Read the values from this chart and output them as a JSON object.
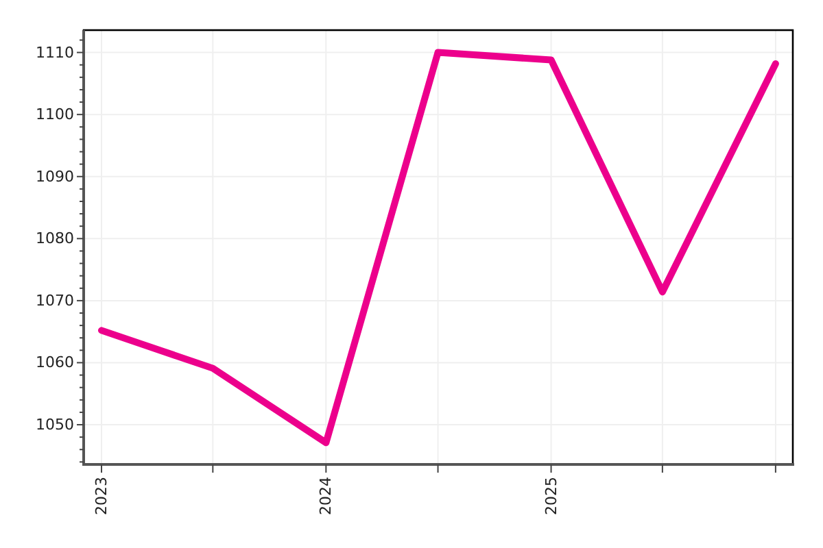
{
  "chart_data": {
    "type": "line",
    "x": [
      "2023",
      "2023-07",
      "2024",
      "2024-07",
      "2025",
      "2025-07",
      "2026"
    ],
    "series": [
      {
        "color": "#ec008c",
        "values": [
          1065.2,
          1059.1,
          1047.1,
          1110.0,
          1108.8,
          1071.4,
          1108.2
        ]
      }
    ],
    "xlim": [
      "2022-12-03",
      "2026-01-29"
    ],
    "xticks": [
      {
        "value": "2023",
        "label": "2023"
      },
      {
        "value": "2023-07",
        "label": null
      },
      {
        "value": "2024",
        "label": "2024"
      },
      {
        "value": "2024-07",
        "label": null
      },
      {
        "value": "2025",
        "label": "2025"
      },
      {
        "value": "2025-07",
        "label": null
      },
      {
        "value": "2026",
        "label": null
      }
    ],
    "ylim": [
      1043.6,
      1113.6
    ],
    "yticks": [
      {
        "value": 1044,
        "label": null
      },
      {
        "value": 1046,
        "label": null
      },
      {
        "value": 1048,
        "label": null
      },
      1050,
      {
        "value": 1052,
        "label": null
      },
      {
        "value": 1054,
        "label": null
      },
      {
        "value": 1056,
        "label": null
      },
      {
        "value": 1058,
        "label": null
      },
      1060,
      {
        "value": 1062,
        "label": null
      },
      {
        "value": 1064,
        "label": null
      },
      {
        "value": 1066,
        "label": null
      },
      {
        "value": 1068,
        "label": null
      },
      1070,
      {
        "value": 1072,
        "label": null
      },
      {
        "value": 1074,
        "label": null
      },
      {
        "value": 1076,
        "label": null
      },
      {
        "value": 1078,
        "label": null
      },
      1080,
      {
        "value": 1082,
        "label": null
      },
      {
        "value": 1084,
        "label": null
      },
      {
        "value": 1086,
        "label": null
      },
      {
        "value": 1088,
        "label": null
      },
      1090,
      {
        "value": 1092,
        "label": null
      },
      {
        "value": 1094,
        "label": null
      },
      {
        "value": 1096,
        "label": null
      },
      {
        "value": 1098,
        "label": null
      },
      1100,
      {
        "value": 1102,
        "label": null
      },
      {
        "value": 1104,
        "label": null
      },
      {
        "value": 1106,
        "label": null
      },
      {
        "value": 1108,
        "label": null
      },
      1110,
      {
        "value": 1112,
        "label": null
      }
    ],
    "grid": true,
    "line_style": "solid"
  }
}
